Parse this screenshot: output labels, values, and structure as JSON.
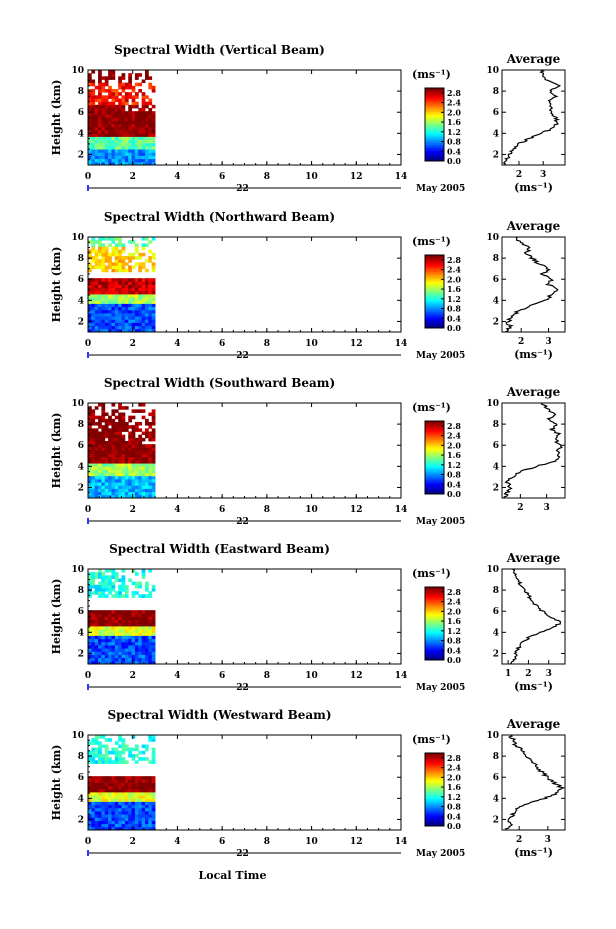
{
  "figure": {
    "xaxis_label": "Local Time",
    "date_day": "22",
    "date_month": "May 2005"
  },
  "chart_data": [
    {
      "type": "heatmap",
      "title": "Spectral Width (Vertical Beam)",
      "xlabel": "Local Time",
      "ylabel": "Height (km)",
      "xlim": [
        0,
        14
      ],
      "ylim": [
        1,
        10
      ],
      "x_ticks": [
        0,
        2,
        4,
        6,
        8,
        10,
        12,
        14
      ],
      "y_ticks": [
        2,
        4,
        6,
        8,
        10
      ],
      "data_time_range": [
        0,
        3
      ],
      "layers": [
        {
          "height_range": [
            1,
            2.5
          ],
          "spectral_width": 0.8
        },
        {
          "height_range": [
            2.5,
            3.5
          ],
          "spectral_width": 1.4
        },
        {
          "height_range": [
            3.5,
            6.5
          ],
          "spectral_width": 3.0
        },
        {
          "height_range": [
            6.5,
            8.5
          ],
          "spectral_width": 2.6
        },
        {
          "height_range": [
            8.5,
            10
          ],
          "spectral_width": 3.0
        }
      ],
      "colorbar": {
        "unit": "(ms⁻¹)",
        "min": 0.0,
        "max": 3.0,
        "ticks": [
          "0.0",
          "0.4",
          "0.8",
          "1.2",
          "1.6",
          "2.0",
          "2.4",
          "2.8"
        ]
      },
      "profile": {
        "title": "Average",
        "xlabel": "(ms⁻¹)",
        "x_ticks": [
          2,
          3
        ],
        "xlim": [
          1.3,
          3.9
        ],
        "heights": [
          1,
          1.5,
          2,
          2.5,
          3,
          3.5,
          4,
          4.5,
          5,
          5.5,
          6,
          6.5,
          7,
          7.5,
          8,
          8.5,
          9,
          9.5,
          10
        ],
        "values": [
          1.4,
          1.5,
          1.6,
          1.8,
          2.0,
          2.4,
          2.9,
          3.4,
          3.6,
          3.5,
          3.3,
          3.4,
          3.2,
          3.5,
          3.3,
          3.6,
          3.2,
          3.0,
          2.9
        ]
      }
    },
    {
      "type": "heatmap",
      "title": "Spectral Width (Northward Beam)",
      "xlabel": "Local Time",
      "ylabel": "Height (km)",
      "xlim": [
        0,
        14
      ],
      "ylim": [
        1,
        10
      ],
      "x_ticks": [
        0,
        2,
        4,
        6,
        8,
        10,
        12,
        14
      ],
      "y_ticks": [
        2,
        4,
        6,
        8,
        10
      ],
      "data_time_range": [
        0,
        3
      ],
      "layers": [
        {
          "height_range": [
            1,
            3.5
          ],
          "spectral_width": 0.6
        },
        {
          "height_range": [
            3.5,
            4.5
          ],
          "spectral_width": 1.6
        },
        {
          "height_range": [
            4.5,
            6
          ],
          "spectral_width": 2.8
        },
        {
          "height_range": [
            6.5,
            9
          ],
          "spectral_width": 2.0
        },
        {
          "height_range": [
            9,
            10
          ],
          "spectral_width": 1.4
        }
      ],
      "colorbar": {
        "unit": "(ms⁻¹)",
        "min": 0.0,
        "max": 3.0,
        "ticks": [
          "0.0",
          "0.4",
          "0.8",
          "1.2",
          "1.6",
          "2.0",
          "2.4",
          "2.8"
        ]
      },
      "profile": {
        "title": "Average",
        "xlabel": "(ms⁻¹)",
        "x_ticks": [
          2,
          3
        ],
        "xlim": [
          1.3,
          3.6
        ],
        "heights": [
          1,
          1.5,
          2,
          2.5,
          3,
          3.5,
          4,
          4.5,
          5,
          5.5,
          6,
          6.5,
          7,
          7.5,
          8,
          8.5,
          9,
          9.5,
          10
        ],
        "values": [
          1.5,
          1.6,
          1.5,
          1.7,
          1.9,
          2.4,
          2.9,
          3.1,
          3.3,
          3.0,
          3.1,
          2.8,
          3.0,
          2.6,
          2.4,
          2.2,
          2.3,
          1.9,
          1.8
        ]
      }
    },
    {
      "type": "heatmap",
      "title": "Spectral Width (Southward Beam)",
      "xlabel": "Local Time",
      "ylabel": "Height (km)",
      "xlim": [
        0,
        14
      ],
      "ylim": [
        1,
        10
      ],
      "x_ticks": [
        0,
        2,
        4,
        6,
        8,
        10,
        12,
        14
      ],
      "y_ticks": [
        2,
        4,
        6,
        8,
        10
      ],
      "data_time_range": [
        0,
        3
      ],
      "layers": [
        {
          "height_range": [
            1,
            3
          ],
          "spectral_width": 0.9
        },
        {
          "height_range": [
            3,
            4
          ],
          "spectral_width": 1.6
        },
        {
          "height_range": [
            4,
            8
          ],
          "spectral_width": 3.0
        },
        {
          "height_range": [
            8,
            10
          ],
          "spectral_width": 3.0
        }
      ],
      "colorbar": {
        "unit": "(ms⁻¹)",
        "min": 0.0,
        "max": 3.0,
        "ticks": [
          "0.0",
          "0.4",
          "0.8",
          "1.2",
          "1.6",
          "2.0",
          "2.4",
          "2.8"
        ]
      },
      "profile": {
        "title": "Average",
        "xlabel": "",
        "x_ticks": [
          2,
          3
        ],
        "xlim": [
          1.3,
          3.7
        ],
        "heights": [
          1,
          1.5,
          2,
          2.5,
          3,
          3.5,
          4,
          4.5,
          5,
          5.5,
          6,
          6.5,
          7,
          7.5,
          8,
          8.5,
          9,
          9.5,
          10
        ],
        "values": [
          1.4,
          1.5,
          1.6,
          1.5,
          1.7,
          2.0,
          2.6,
          3.3,
          3.5,
          3.4,
          3.6,
          3.3,
          3.5,
          3.2,
          3.4,
          3.1,
          3.3,
          3.0,
          2.8
        ]
      }
    },
    {
      "type": "heatmap",
      "title": "Spectral Width (Eastward Beam)",
      "xlabel": "Local Time",
      "ylabel": "Height (km)",
      "xlim": [
        0,
        14
      ],
      "ylim": [
        1,
        10
      ],
      "x_ticks": [
        0,
        2,
        4,
        6,
        8,
        10,
        12,
        14
      ],
      "y_ticks": [
        2,
        4,
        6,
        8,
        10
      ],
      "data_time_range": [
        0,
        3
      ],
      "layers": [
        {
          "height_range": [
            1,
            3.5
          ],
          "spectral_width": 0.6
        },
        {
          "height_range": [
            3.5,
            4.5
          ],
          "spectral_width": 1.8
        },
        {
          "height_range": [
            4.5,
            6
          ],
          "spectral_width": 3.0
        },
        {
          "height_range": [
            7,
            10
          ],
          "spectral_width": 1.2
        }
      ],
      "colorbar": {
        "unit": "(ms⁻¹)",
        "min": 0.0,
        "max": 3.0,
        "ticks": [
          "0.0",
          "0.4",
          "0.8",
          "1.2",
          "1.6",
          "2.0",
          "2.4",
          "2.8"
        ]
      },
      "profile": {
        "title": "Average",
        "xlabel": "(ms⁻¹)",
        "x_ticks": [
          1,
          2,
          3
        ],
        "xlim": [
          0.7,
          3.8
        ],
        "heights": [
          1,
          1.5,
          2,
          2.5,
          3,
          3.5,
          4,
          4.5,
          5,
          5.5,
          6,
          6.5,
          7,
          7.5,
          8,
          8.5,
          9,
          9.5,
          10
        ],
        "values": [
          1.2,
          1.3,
          1.4,
          1.5,
          1.7,
          2.0,
          2.6,
          3.3,
          3.6,
          3.0,
          2.7,
          2.4,
          2.2,
          2.0,
          1.8,
          1.6,
          1.5,
          1.3,
          1.2
        ]
      }
    },
    {
      "type": "heatmap",
      "title": "Spectral Width (Westward Beam)",
      "xlabel": "Local Time",
      "ylabel": "Height (km)",
      "xlim": [
        0,
        14
      ],
      "ylim": [
        1,
        10
      ],
      "x_ticks": [
        0,
        2,
        4,
        6,
        8,
        10,
        12,
        14
      ],
      "y_ticks": [
        2,
        4,
        6,
        8,
        10
      ],
      "data_time_range": [
        0,
        3
      ],
      "layers": [
        {
          "height_range": [
            1,
            3.5
          ],
          "spectral_width": 0.6
        },
        {
          "height_range": [
            3.5,
            4.5
          ],
          "spectral_width": 1.8
        },
        {
          "height_range": [
            4.5,
            6
          ],
          "spectral_width": 3.0
        },
        {
          "height_range": [
            7,
            10
          ],
          "spectral_width": 1.2
        }
      ],
      "colorbar": {
        "unit": "(ms⁻¹)",
        "min": 0.0,
        "max": 3.0,
        "ticks": [
          "0.0",
          "0.4",
          "0.8",
          "1.2",
          "1.6",
          "2.0",
          "2.4",
          "2.8"
        ]
      },
      "profile": {
        "title": "Average",
        "xlabel": "(ms⁻¹)",
        "x_ticks": [
          2,
          3
        ],
        "xlim": [
          1.4,
          3.6
        ],
        "heights": [
          1,
          1.5,
          2,
          2.5,
          3,
          3.5,
          4,
          4.5,
          5,
          5.5,
          6,
          6.5,
          7,
          7.5,
          8,
          8.5,
          9,
          9.5,
          10
        ],
        "values": [
          1.6,
          1.7,
          1.6,
          1.8,
          1.9,
          2.3,
          2.9,
          3.3,
          3.5,
          3.2,
          3.0,
          2.8,
          2.6,
          2.5,
          2.3,
          2.1,
          1.9,
          1.8,
          1.7
        ]
      }
    }
  ]
}
